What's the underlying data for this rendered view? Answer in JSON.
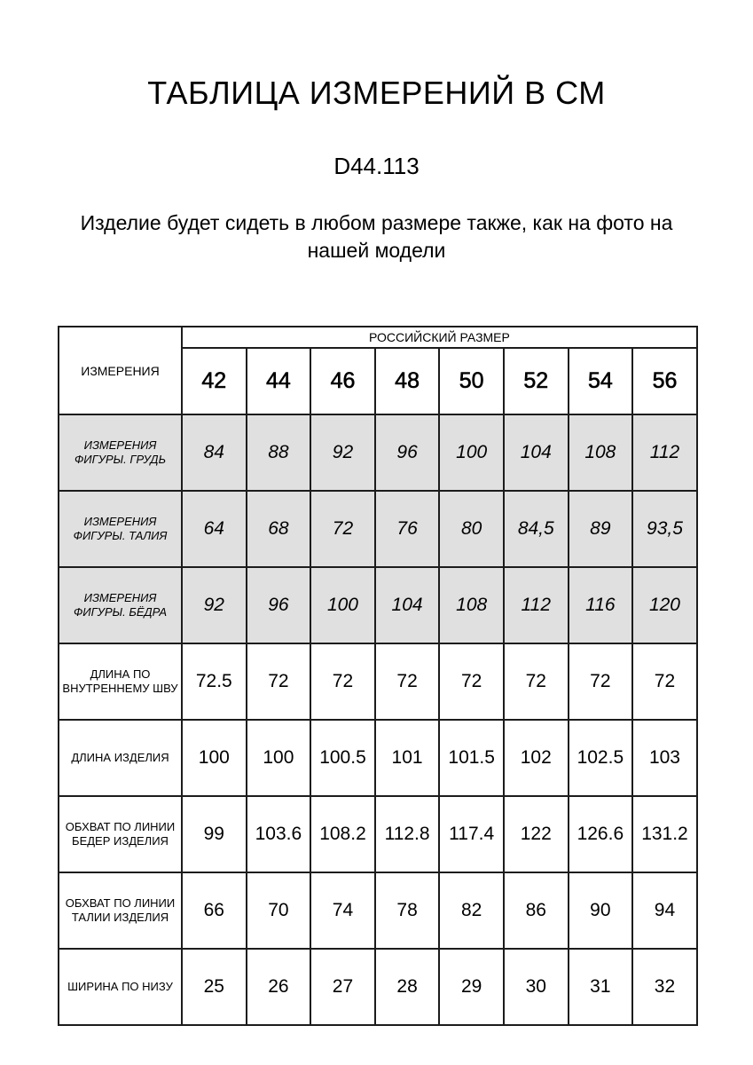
{
  "header": {
    "title": "ТАБЛИЦА ИЗМЕРЕНИЙ В СМ",
    "model_code": "D44.113",
    "note": "Изделие будет сидеть в любом размере также, как на фото на нашей модели"
  },
  "table": {
    "row_header": "ИЗМЕРЕНИЯ",
    "size_group_label": "РОССИЙСКИЙ РАЗМЕР",
    "sizes": [
      "42",
      "44",
      "46",
      "48",
      "50",
      "52",
      "54",
      "56"
    ],
    "shaded_row_color": "#e0e0e0",
    "rows": [
      {
        "label": "ИЗМЕРЕНИЯ ФИГУРЫ. ГРУДЬ",
        "shaded": true,
        "values": [
          "84",
          "88",
          "92",
          "96",
          "100",
          "104",
          "108",
          "112"
        ]
      },
      {
        "label": "ИЗМЕРЕНИЯ ФИГУРЫ. ТАЛИЯ",
        "shaded": true,
        "values": [
          "64",
          "68",
          "72",
          "76",
          "80",
          "84,5",
          "89",
          "93,5"
        ]
      },
      {
        "label": "ИЗМЕРЕНИЯ ФИГУРЫ. БЁДРА",
        "shaded": true,
        "values": [
          "92",
          "96",
          "100",
          "104",
          "108",
          "112",
          "116",
          "120"
        ]
      },
      {
        "label": "ДЛИНА ПО ВНУТРЕННЕМУ ШВУ",
        "shaded": false,
        "values": [
          "72.5",
          "72",
          "72",
          "72",
          "72",
          "72",
          "72",
          "72"
        ]
      },
      {
        "label": "ДЛИНА ИЗДЕЛИЯ",
        "shaded": false,
        "values": [
          "100",
          "100",
          "100.5",
          "101",
          "101.5",
          "102",
          "102.5",
          "103"
        ]
      },
      {
        "label": "ОБХВАТ ПО ЛИНИИ БЕДЕР ИЗДЕЛИЯ",
        "shaded": false,
        "values": [
          "99",
          "103.6",
          "108.2",
          "112.8",
          "117.4",
          "122",
          "126.6",
          "131.2"
        ]
      },
      {
        "label": "ОБХВАТ ПО ЛИНИИ ТАЛИИ ИЗДЕЛИЯ",
        "shaded": false,
        "values": [
          "66",
          "70",
          "74",
          "78",
          "82",
          "86",
          "90",
          "94"
        ]
      },
      {
        "label": "ШИРИНА ПО НИЗУ",
        "shaded": false,
        "values": [
          "25",
          "26",
          "27",
          "28",
          "29",
          "30",
          "31",
          "32"
        ]
      }
    ]
  },
  "chart_data": {
    "type": "table",
    "title": "ТАБЛИЦА ИЗМЕРЕНИЙ В СМ",
    "columns": [
      "ИЗМЕРЕНИЯ",
      "42",
      "44",
      "46",
      "48",
      "50",
      "52",
      "54",
      "56"
    ],
    "rows": [
      [
        "ИЗМЕРЕНИЯ ФИГУРЫ. ГРУДЬ",
        84,
        88,
        92,
        96,
        100,
        104,
        108,
        112
      ],
      [
        "ИЗМЕРЕНИЯ ФИГУРЫ. ТАЛИЯ",
        64,
        68,
        72,
        76,
        80,
        84.5,
        89,
        93.5
      ],
      [
        "ИЗМЕРЕНИЯ ФИГУРЫ. БЁДРА",
        92,
        96,
        100,
        104,
        108,
        112,
        116,
        120
      ],
      [
        "ДЛИНА ПО ВНУТРЕННЕМУ ШВУ",
        72.5,
        72,
        72,
        72,
        72,
        72,
        72,
        72
      ],
      [
        "ДЛИНА ИЗДЕЛИЯ",
        100,
        100,
        100.5,
        101,
        101.5,
        102,
        102.5,
        103
      ],
      [
        "ОБХВАТ ПО ЛИНИИ БЕДЕР ИЗДЕЛИЯ",
        99,
        103.6,
        108.2,
        112.8,
        117.4,
        122,
        126.6,
        131.2
      ],
      [
        "ОБХВАТ ПО ЛИНИИ ТАЛИИ ИЗДЕЛИЯ",
        66,
        70,
        74,
        78,
        82,
        86,
        90,
        94
      ],
      [
        "ШИРИНА ПО НИЗУ",
        25,
        26,
        27,
        28,
        29,
        30,
        31,
        32
      ]
    ]
  }
}
